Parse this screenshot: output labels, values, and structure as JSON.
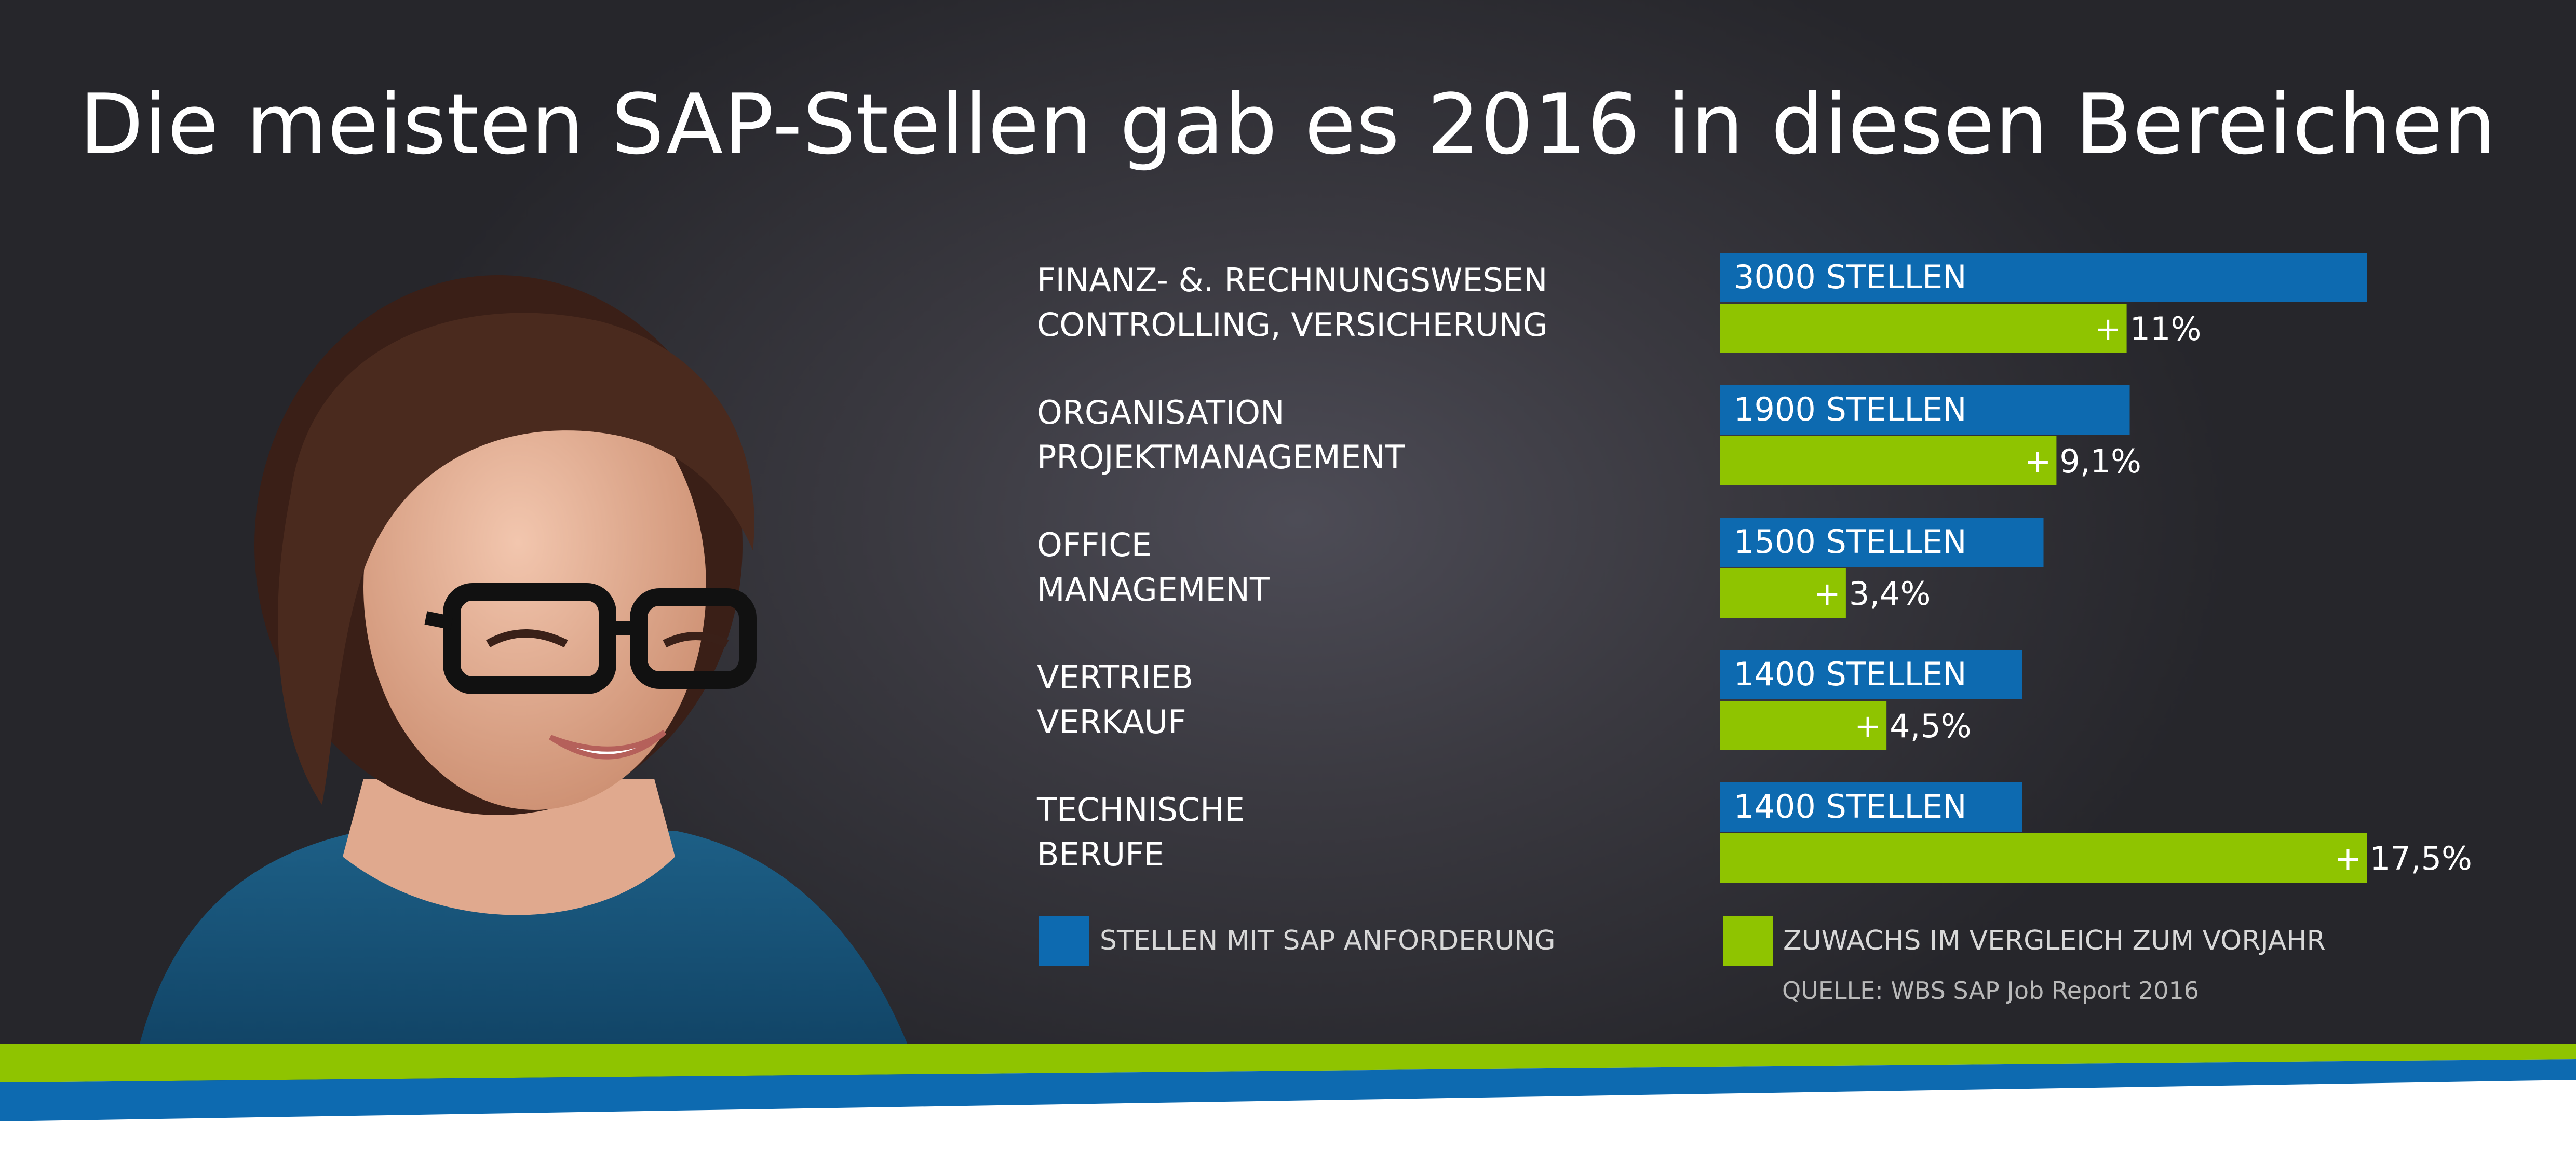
{
  "title": "Die meisten SAP-Stellen gab es 2016 in diesen Bereichen",
  "colors": {
    "jobs_bar": "#0d6ab0",
    "growth_bar": "#8fc400",
    "background": "#3a3940",
    "text": "#ffffff",
    "stripe_green": "#8fc400",
    "stripe_blue": "#0d6ab0"
  },
  "chart_data": {
    "type": "bar",
    "orientation": "horizontal",
    "categories": [
      {
        "line1": "FINANZ- &. RECHNUNGSWESEN",
        "line2": "CONTROLLING, VERSICHERUNG"
      },
      {
        "line1": "ORGANISATION",
        "line2": "PROJEKTMANAGEMENT"
      },
      {
        "line1": "OFFICE",
        "line2": "MANAGEMENT"
      },
      {
        "line1": "VERTRIEB",
        "line2": "VERKAUF"
      },
      {
        "line1": "TECHNISCHE",
        "line2": "BERUFE"
      }
    ],
    "series": [
      {
        "name": "STELLEN MIT SAP ANFORDERUNG",
        "values": [
          3000,
          1900,
          1500,
          1400,
          1400
        ],
        "labels": [
          "3000 STELLEN",
          "1900 STELLEN",
          "1500 STELLEN",
          "1400 STELLEN",
          "1400 STELLEN"
        ]
      },
      {
        "name": "ZUWACHS IM VERGLEICH ZUM VORJAHR",
        "values": [
          11,
          9.1,
          3.4,
          4.5,
          17.5
        ],
        "labels": [
          "11%",
          "9,1%",
          "3,4%",
          "4,5%",
          "17,5%"
        ]
      }
    ],
    "growth_prefix": "+",
    "legend": [
      "STELLEN MIT SAP ANFORDERUNG",
      "ZUWACHS IM VERGLEICH ZUM VORJAHR"
    ],
    "legend_position": "bottom"
  },
  "source": "QUELLE: WBS SAP Job Report 2016"
}
